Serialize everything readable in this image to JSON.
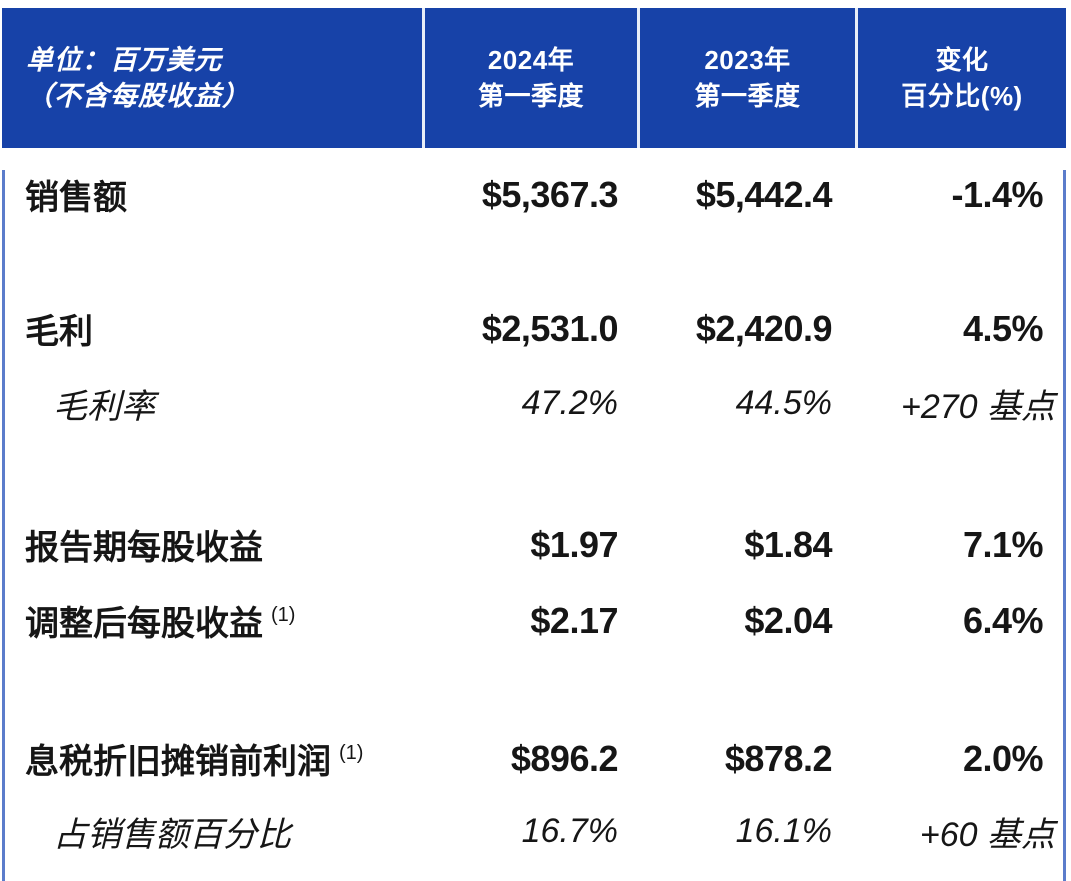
{
  "colors": {
    "header_background": "#1742A8",
    "header_text": "#FFFFFF",
    "header_divider": "#E8EEF8",
    "body_border": "#5B7CCB",
    "body_border_bottom": "#2A52B0",
    "body_text": "#161616"
  },
  "chart_data": {
    "type": "table",
    "header": {
      "unit_line1": "单位：百万美元",
      "unit_line2": "（不含每股收益）",
      "col_2024_line1": "2024年",
      "col_2024_line2": "第一季度",
      "col_2023_line1": "2023年",
      "col_2023_line2": "第一季度",
      "col_change_line1": "变化",
      "col_change_line2": "百分比(%)"
    },
    "rows": [
      {
        "label": "销售额",
        "sup": "",
        "v2024": "$5,367.3",
        "v2023": "$5,442.4",
        "change": "-1.4%",
        "style": "main"
      },
      {
        "label": "毛利",
        "sup": "",
        "v2024": "$2,531.0",
        "v2023": "$2,420.9",
        "change": "4.5%",
        "style": "main"
      },
      {
        "label": "毛利率",
        "sup": "",
        "v2024": "47.2%",
        "v2023": "44.5%",
        "change": "+270 基点",
        "style": "sub"
      },
      {
        "label": "报告期每股收益",
        "sup": "",
        "v2024": "$1.97",
        "v2023": "$1.84",
        "change": "7.1%",
        "style": "main"
      },
      {
        "label": "调整后每股收益",
        "sup": "(1)",
        "v2024": "$2.17",
        "v2023": "$2.04",
        "change": "6.4%",
        "style": "main"
      },
      {
        "label": "息税折旧摊销前利润",
        "sup": "(1)",
        "v2024": "$896.2",
        "v2023": "$878.2",
        "change": "2.0%",
        "style": "main"
      },
      {
        "label": "占销售额百分比",
        "sup": "",
        "v2024": "16.7%",
        "v2023": "16.1%",
        "change": "+60 基点",
        "style": "sub"
      }
    ]
  }
}
